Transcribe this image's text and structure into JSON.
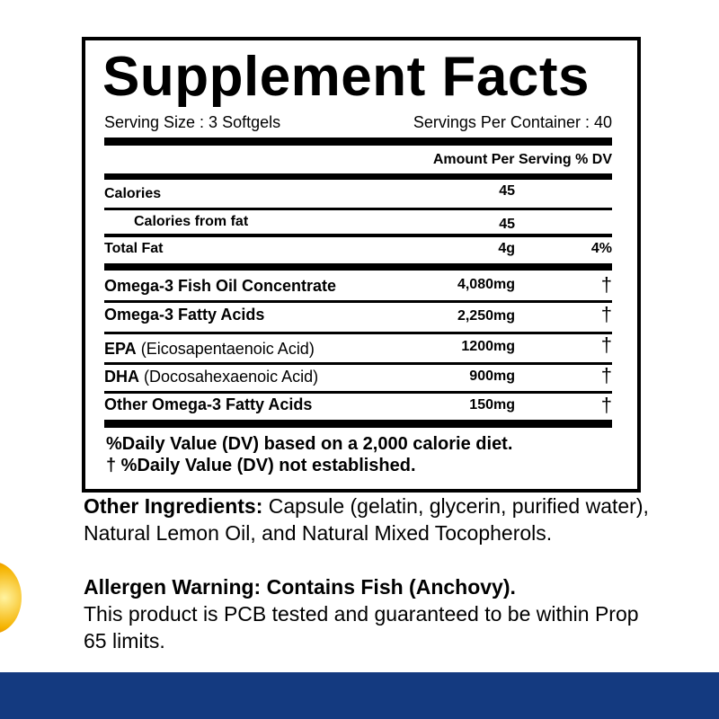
{
  "title": "Supplement Facts",
  "serving_size": "Serving Size : 3 Softgels",
  "servings_per_container": "Servings Per Container : 40",
  "header": "Amount Per Serving % DV",
  "rows": [
    {
      "label": "Calories",
      "amount": "45",
      "dv": ""
    },
    {
      "label": "Calories from fat",
      "amount": "45",
      "dv": ""
    },
    {
      "label": "Total Fat",
      "amount": "4g",
      "dv": "4%"
    },
    {
      "label": "Omega-3 Fish Oil Concentrate",
      "amount": "4,080mg",
      "dv": "†"
    },
    {
      "label": "Omega-3 Fatty Acids",
      "amount": "2,250mg",
      "dv": "†"
    },
    {
      "label": "EPA",
      "sub": "(Eicosapentaenoic Acid)",
      "amount": "1200mg",
      "dv": "†"
    },
    {
      "label": "DHA",
      "sub": "(Docosahexaenoic Acid)",
      "amount": "900mg",
      "dv": "†"
    },
    {
      "label": "Other Omega-3 Fatty Acids",
      "amount": "150mg",
      "dv": "†"
    }
  ],
  "footnote1": "%Daily Value (DV) based on a 2,000 calorie diet.",
  "footnote2": "† %Daily Value (DV) not established.",
  "other_ingredients_label": "Other Ingredients:",
  "other_ingredients": " Capsule (gelatin, glycerin, purified water), Natural Lemon Oil, and Natural Mixed Tocopherols.",
  "allergen": "Allergen Warning: Contains Fish (Anchovy).",
  "pcb": "This product is PCB tested and guaranteed to be within Prop 65 limits.",
  "colors": {
    "footer": "#143a80",
    "badge": "#f5b300"
  }
}
